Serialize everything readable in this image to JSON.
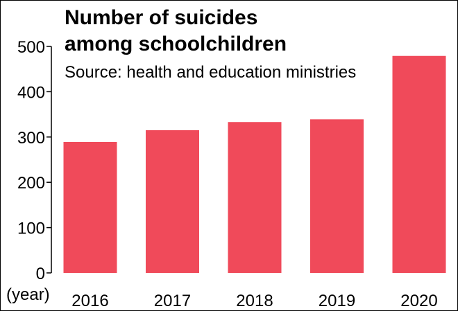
{
  "chart_data": {
    "type": "bar",
    "title_lines": [
      "Number of suicides",
      "among schoolchildren"
    ],
    "subtitle": "Source: health and education ministries",
    "xlabel": "(year)",
    "ylabel": "",
    "categories": [
      "2016",
      "2017",
      "2018",
      "2019",
      "2020"
    ],
    "values": [
      289,
      315,
      333,
      339,
      479
    ],
    "ylim": [
      0,
      500
    ],
    "yticks": [
      "0",
      "100",
      "200",
      "300",
      "400",
      "500"
    ],
    "grid": false,
    "legend": "none",
    "bar_color": "#f04a5a"
  }
}
